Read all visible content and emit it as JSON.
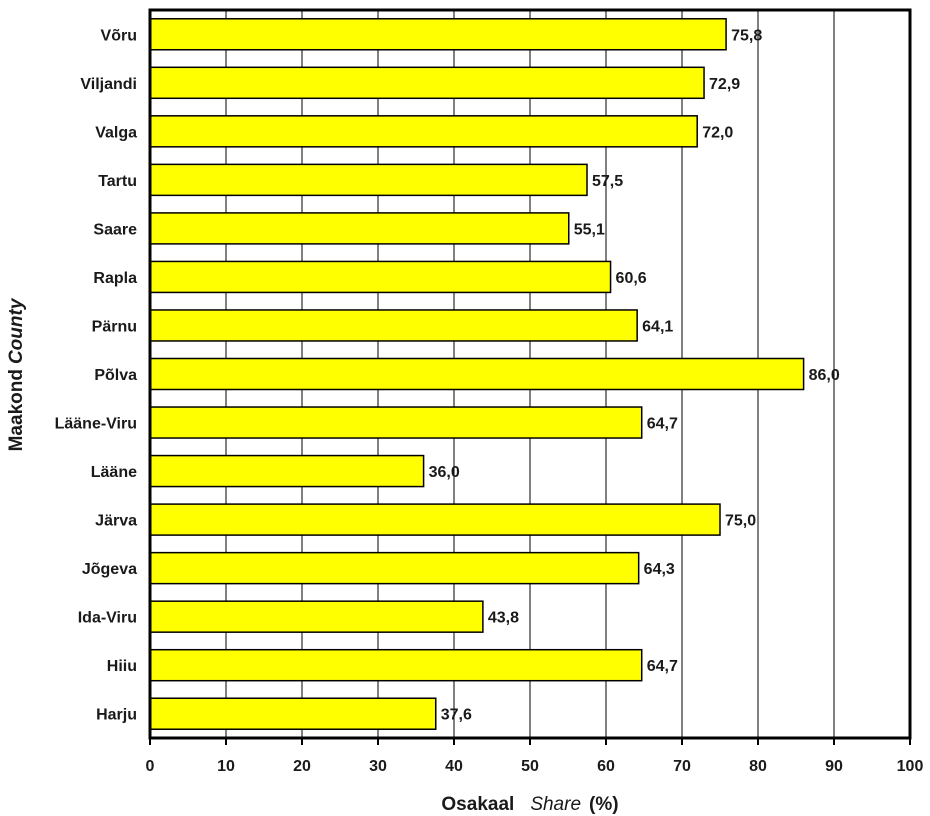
{
  "chart_data": {
    "type": "bar",
    "orientation": "horizontal",
    "categories": [
      "Võru",
      "Viljandi",
      "Valga",
      "Tartu",
      "Saare",
      "Rapla",
      "Pärnu",
      "Põlva",
      "Lääne-Viru",
      "Lääne",
      "Järva",
      "Jõgeva",
      "Ida-Viru",
      "Hiiu",
      "Harju"
    ],
    "values": [
      75.8,
      72.9,
      72.0,
      57.5,
      55.1,
      60.6,
      64.1,
      86.0,
      64.7,
      36.0,
      75.0,
      64.3,
      43.8,
      64.7,
      37.6
    ],
    "value_labels": [
      "75,8",
      "72,9",
      "72,0",
      "57,5",
      "55,1",
      "60,6",
      "64,1",
      "86,0",
      "64,7",
      "36,0",
      "75,0",
      "64,3",
      "43,8",
      "64,7",
      "37,6"
    ],
    "xlim": [
      0,
      100
    ],
    "xticks": [
      0,
      10,
      20,
      30,
      40,
      50,
      60,
      70,
      80,
      90,
      100
    ],
    "xlabel": {
      "bold": "Osakaal",
      "italic": "Share",
      "unit": "(%)"
    },
    "ylabel": {
      "bold": "Maakond",
      "italic": "County"
    },
    "grid": "vertical",
    "bar_color": "#ffff00",
    "bar_edge_color": "#000000"
  }
}
